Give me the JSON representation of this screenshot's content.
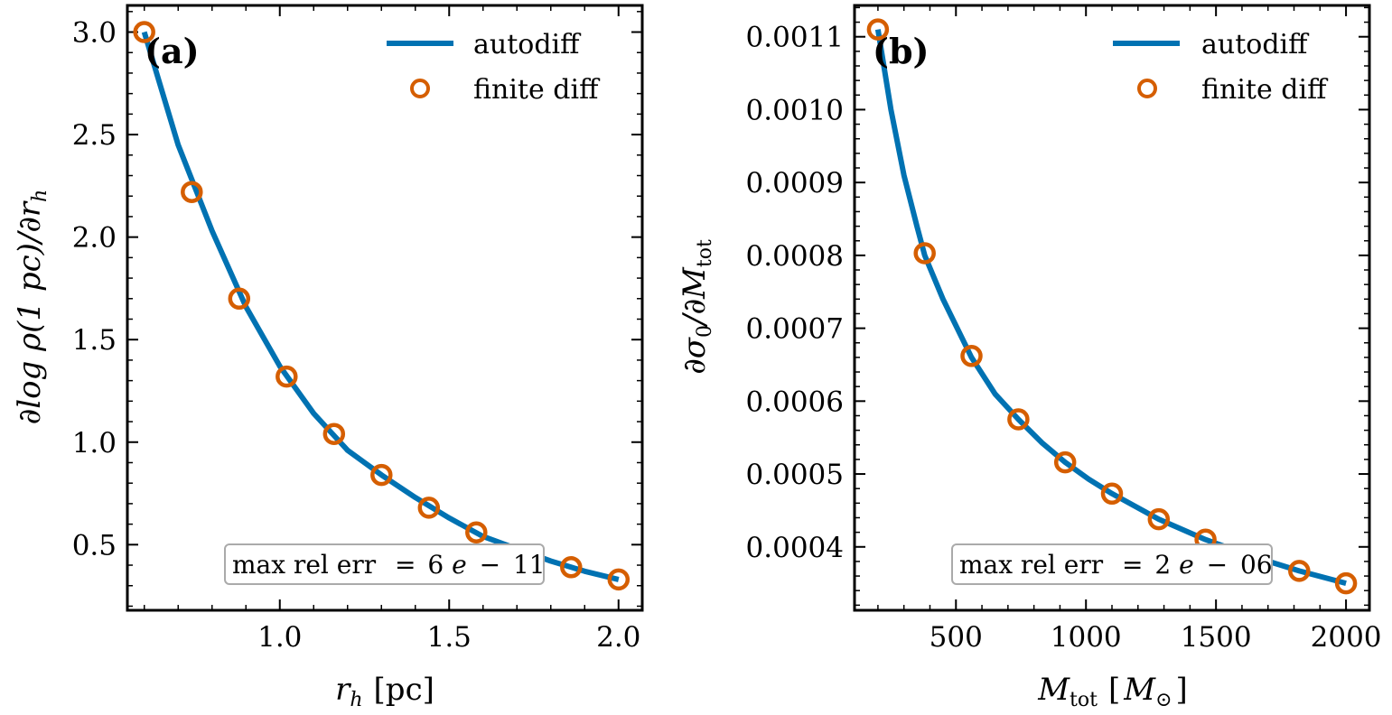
{
  "chart_data": [
    {
      "type": "line",
      "panel_label": "(a)",
      "xlabel_main": "r",
      "xlabel_sub": "h",
      "xlabel_unit": "[pc]",
      "ylabel": "∂log ρ(1 pc)/∂r",
      "ylabel_sub": "h",
      "xlim": [
        0.55,
        2.07
      ],
      "ylim": [
        0.18,
        3.13
      ],
      "xticks": [
        1.0,
        1.5,
        2.0
      ],
      "xtick_labels": [
        "1.0",
        "1.5",
        "2.0"
      ],
      "yticks": [
        0.5,
        1.0,
        1.5,
        2.0,
        2.5,
        3.0
      ],
      "ytick_labels": [
        "0.5",
        "1.0",
        "1.5",
        "2.0",
        "2.5",
        "3.0"
      ],
      "x_minor_step": 0.1,
      "y_minor_step": 0.1,
      "legend_position": "upper-right",
      "grid": false,
      "series": [
        {
          "name": "autodiff",
          "style": "line",
          "color": "#0072b2",
          "x": [
            0.6,
            0.7,
            0.8,
            0.9,
            1.0,
            1.1,
            1.2,
            1.3,
            1.4,
            1.5,
            1.6,
            1.7,
            1.8,
            1.9,
            2.0
          ],
          "y": [
            3.0,
            2.45,
            2.03,
            1.66,
            1.37,
            1.14,
            0.96,
            0.84,
            0.73,
            0.63,
            0.54,
            0.48,
            0.42,
            0.37,
            0.33
          ]
        },
        {
          "name": "finite diff",
          "style": "markers",
          "color": "#d55e00",
          "x": [
            0.6,
            0.74,
            0.88,
            1.02,
            1.16,
            1.3,
            1.44,
            1.58,
            1.86,
            2.0
          ],
          "y": [
            3.0,
            2.22,
            1.7,
            1.32,
            1.04,
            0.84,
            0.68,
            0.56,
            0.39,
            0.33
          ]
        }
      ],
      "annotation": {
        "prefix": "max rel err",
        "equals": "=",
        "mantissa": "6",
        "e": "e",
        "minus": "−",
        "exponent": "11"
      }
    },
    {
      "type": "line",
      "panel_label": "(b)",
      "xlabel_main": "M",
      "xlabel_sub": "tot",
      "xlabel_unit_open": "[",
      "xlabel_unit_main": "M",
      "xlabel_unit_sub": "⊙",
      "xlabel_unit_close": "]",
      "ylabel": "∂σ",
      "ylabel_sub0": "0",
      "ylabel_mid": "/∂M",
      "ylabel_sub": "tot",
      "xlim": [
        110,
        2090
      ],
      "ylim": [
        0.000313,
        0.001143
      ],
      "xticks": [
        500,
        1000,
        1500,
        2000
      ],
      "xtick_labels": [
        "500",
        "1000",
        "1500",
        "2000"
      ],
      "yticks": [
        0.0004,
        0.0005,
        0.0006,
        0.0007,
        0.0008,
        0.0009,
        0.001,
        0.0011
      ],
      "ytick_labels": [
        "0.0004",
        "0.0005",
        "0.0006",
        "0.0007",
        "0.0008",
        "0.0009",
        "0.0010",
        "0.0011"
      ],
      "x_minor_step": 100,
      "y_minor_step": 2e-05,
      "legend_position": "upper-right",
      "grid": false,
      "series": [
        {
          "name": "autodiff",
          "style": "line",
          "color": "#0072b2",
          "x": [
            200,
            250,
            300,
            350,
            380,
            450,
            560,
            650,
            740,
            830,
            920,
            1010,
            1100,
            1280,
            1460,
            1640,
            1820,
            2000
          ],
          "y": [
            0.00111,
            0.001,
            0.00091,
            0.00084,
            0.0008,
            0.00074,
            0.00066,
            0.00061,
            0.000575,
            0.000543,
            0.000516,
            0.000493,
            0.000473,
            0.000438,
            0.00041,
            0.000387,
            0.000367,
            0.00035
          ]
        },
        {
          "name": "finite diff",
          "style": "markers",
          "color": "#d55e00",
          "x": [
            200,
            380,
            560,
            740,
            920,
            1100,
            1280,
            1460,
            1820,
            2000
          ],
          "y": [
            0.00111,
            0.000803,
            0.000662,
            0.000575,
            0.000516,
            0.000473,
            0.000438,
            0.00041,
            0.000367,
            0.00035
          ]
        }
      ],
      "annotation": {
        "prefix": "max rel err",
        "equals": "=",
        "mantissa": "2",
        "e": "e",
        "minus": "−",
        "exponent": "06"
      }
    }
  ]
}
